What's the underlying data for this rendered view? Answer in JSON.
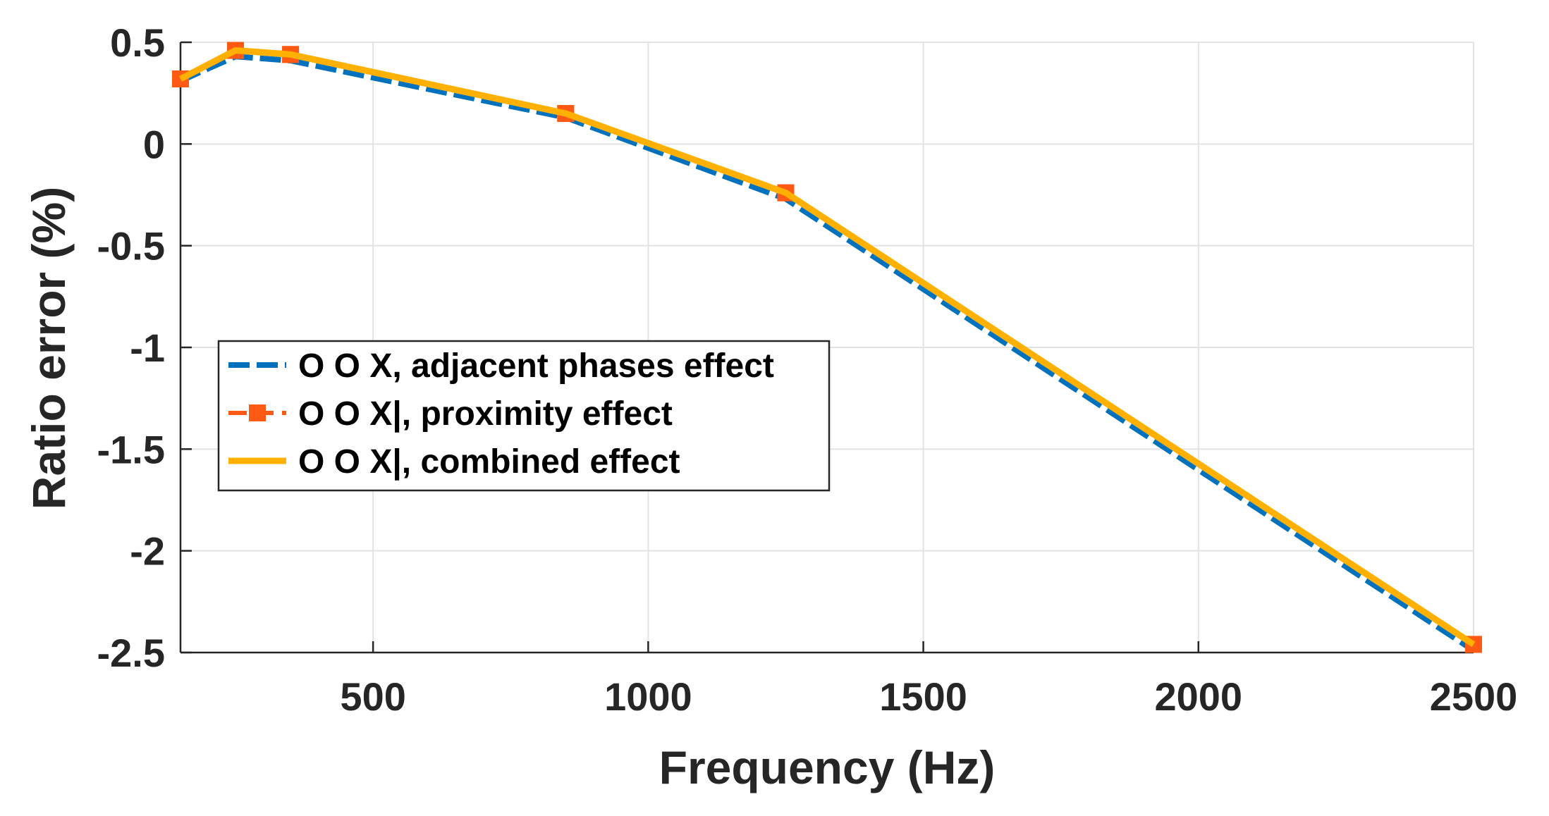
{
  "chart_data": {
    "type": "line",
    "title": "",
    "xlabel": "Frequency (Hz)",
    "ylabel": "Ratio error (%)",
    "xlim": [
      150,
      2500
    ],
    "ylim": [
      -2.5,
      0.5
    ],
    "xticks": [
      500,
      1000,
      1500,
      2000,
      2500
    ],
    "xtick_labels": [
      "500",
      "1000",
      "1500",
      "2000",
      "2500"
    ],
    "yticks": [
      0.5,
      0,
      -0.5,
      -1,
      -1.5,
      -2,
      -2.5
    ],
    "ytick_labels": [
      "0.5",
      "0",
      "-0.5",
      "-1",
      "-1.5",
      "-2",
      "-2.5"
    ],
    "grid": true,
    "legend_position": "middle-left",
    "series": [
      {
        "name": "O O X, adjacent phases effect",
        "color": "#0072BD",
        "style": "dashed",
        "marker": "none",
        "x": [
          150,
          250,
          350,
          850,
          1250,
          2500
        ],
        "y": [
          0.31,
          0.43,
          0.41,
          0.13,
          -0.27,
          -2.49
        ]
      },
      {
        "name": "O O X|, proximity effect",
        "color": "#FF5A14",
        "style": "dashed",
        "marker": "square",
        "x": [
          150,
          250,
          350,
          850,
          1250,
          2500
        ],
        "y": [
          0.32,
          0.46,
          0.44,
          0.15,
          -0.24,
          -2.46
        ]
      },
      {
        "name": "O O X|, combined effect",
        "color": "#FFB000",
        "style": "solid",
        "marker": "none",
        "x": [
          150,
          250,
          350,
          850,
          1250,
          2500
        ],
        "y": [
          0.32,
          0.46,
          0.44,
          0.15,
          -0.24,
          -2.46
        ]
      }
    ]
  }
}
